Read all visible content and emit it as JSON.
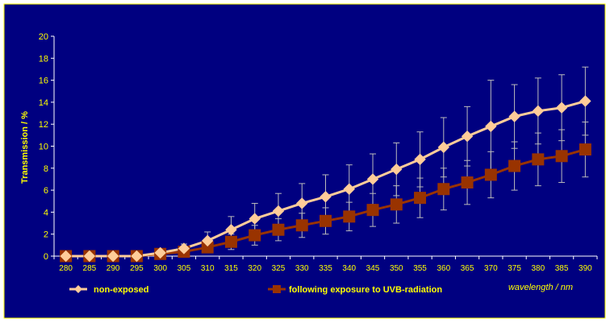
{
  "chart_data": {
    "type": "line",
    "title": "",
    "xlabel": "wavelength / nm",
    "ylabel": "Transmission / %",
    "ylim": [
      0,
      20
    ],
    "y_ticks": [
      0,
      2,
      4,
      6,
      8,
      10,
      12,
      14,
      16,
      18,
      20
    ],
    "grid": false,
    "legend_position": "bottom",
    "x": [
      280,
      285,
      290,
      295,
      300,
      305,
      310,
      315,
      320,
      325,
      330,
      335,
      340,
      345,
      350,
      355,
      360,
      365,
      370,
      375,
      380,
      385,
      390
    ],
    "series": [
      {
        "name": "non-exposed",
        "color": "#FFCC99",
        "marker": "diamond",
        "values": [
          0,
          0,
          0,
          0,
          0.3,
          0.7,
          1.4,
          2.4,
          3.4,
          4.1,
          4.8,
          5.4,
          6.1,
          7.0,
          7.9,
          8.8,
          9.9,
          10.9,
          11.8,
          12.7,
          13.2,
          13.5,
          14.1
        ],
        "errors": [
          0,
          0,
          0,
          0,
          0.2,
          0.4,
          0.8,
          1.2,
          1.4,
          1.6,
          1.8,
          2.0,
          2.2,
          2.3,
          2.4,
          2.5,
          2.7,
          2.7,
          4.2,
          2.9,
          3.0,
          3.0,
          3.1
        ]
      },
      {
        "name": "following exposure to UVB-radiation",
        "color": "#993300",
        "marker": "square",
        "values": [
          0,
          0,
          0,
          0,
          0.2,
          0.4,
          0.8,
          1.3,
          1.9,
          2.4,
          2.8,
          3.2,
          3.6,
          4.2,
          4.7,
          5.3,
          6.1,
          6.7,
          7.4,
          8.2,
          8.8,
          9.1,
          9.7
        ],
        "errors": [
          0,
          0,
          0,
          0,
          0.1,
          0.3,
          0.5,
          0.7,
          0.9,
          1.0,
          1.1,
          1.2,
          1.3,
          1.5,
          1.7,
          1.8,
          1.9,
          2.0,
          2.1,
          2.2,
          2.4,
          2.4,
          2.5
        ]
      }
    ]
  },
  "colors": {
    "background": "#000080",
    "border": "#FFFF00",
    "axis": "#FFFFFF",
    "text": "#FFFF00",
    "error_bars": "#BBBBBB"
  }
}
